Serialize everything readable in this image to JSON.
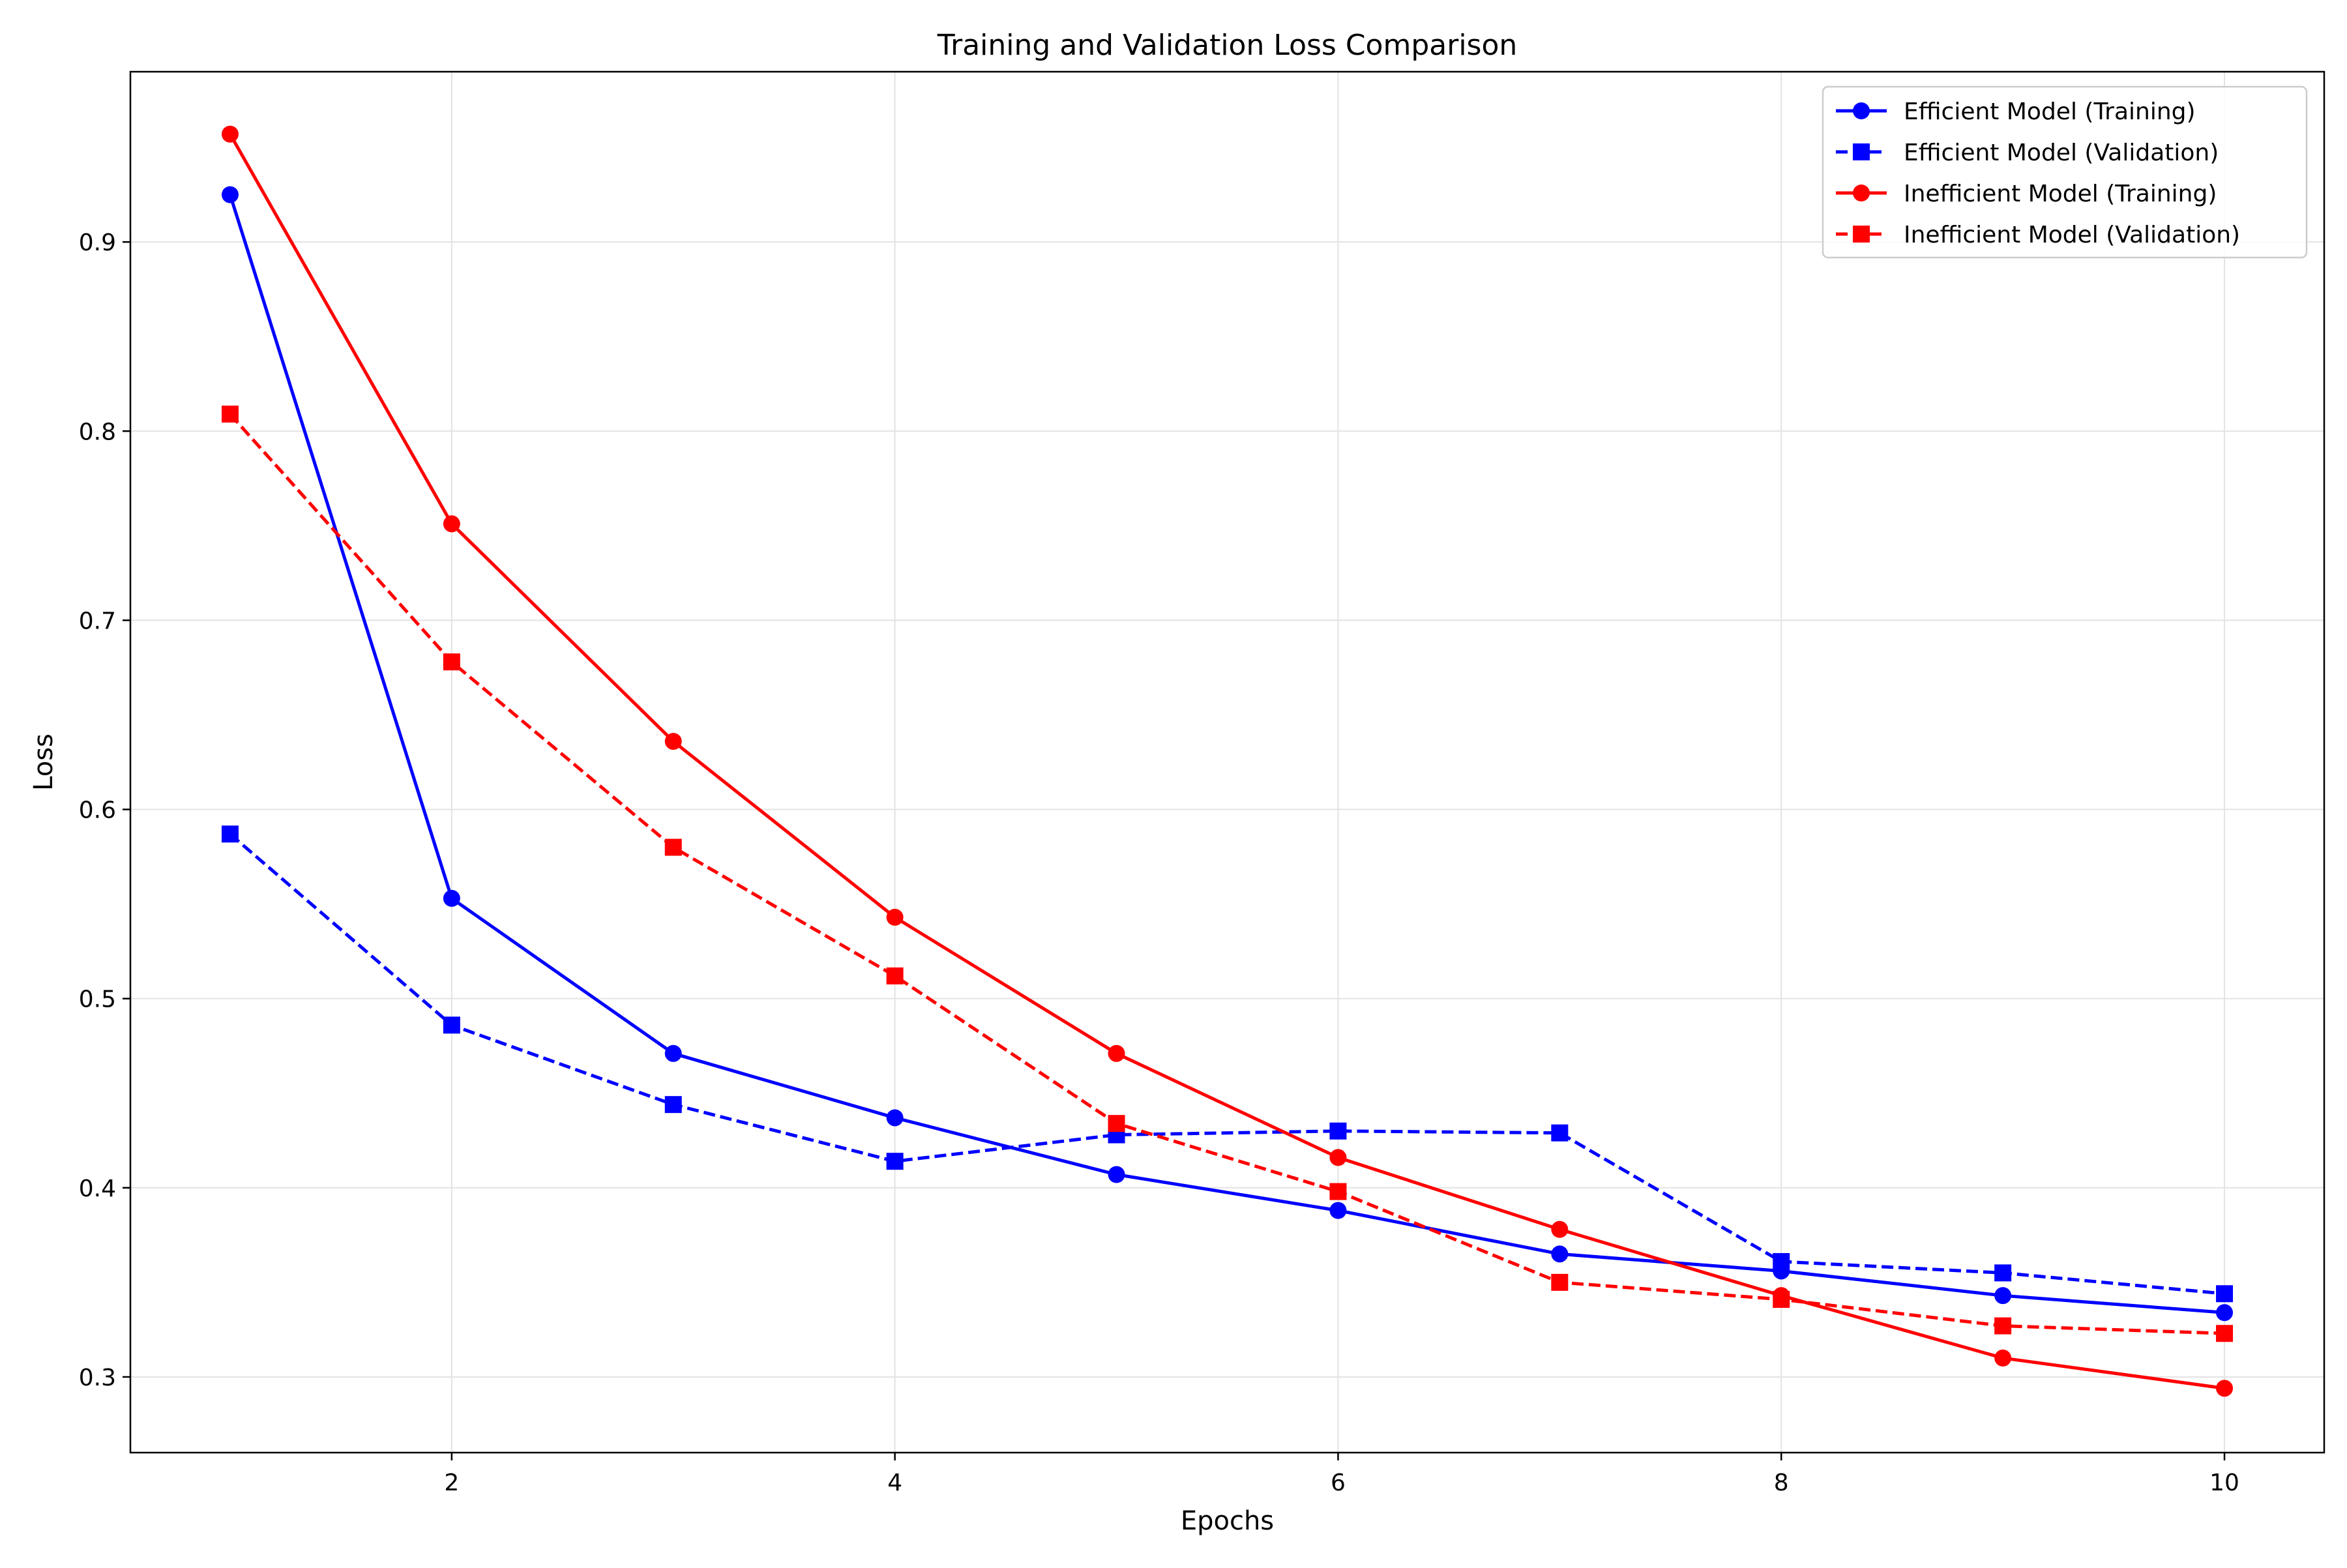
{
  "chart_data": {
    "type": "line",
    "title": "Training and Validation Loss Comparison",
    "xlabel": "Epochs",
    "ylabel": "Loss",
    "xlim": [
      0.55,
      10.45
    ],
    "ylim": [
      0.26,
      0.99
    ],
    "xticks": [
      2,
      4,
      6,
      8,
      10
    ],
    "yticks": [
      0.3,
      0.4,
      0.5,
      0.6,
      0.7,
      0.8,
      0.9
    ],
    "xtick_labels": [
      "2",
      "4",
      "6",
      "8",
      "10"
    ],
    "ytick_labels": [
      "0.3",
      "0.4",
      "0.5",
      "0.6",
      "0.7",
      "0.8",
      "0.9"
    ],
    "grid": true,
    "legend_position": "top-right",
    "x": [
      1,
      2,
      3,
      4,
      5,
      6,
      7,
      8,
      9,
      10
    ],
    "series": [
      {
        "name": "Efficient Model (Training)",
        "color": "#0000ff",
        "line_style": "solid",
        "marker": "circle",
        "values": [
          0.925,
          0.553,
          0.471,
          0.437,
          0.407,
          0.388,
          0.365,
          0.356,
          0.343,
          0.334
        ]
      },
      {
        "name": "Efficient Model (Validation)",
        "color": "#0000ff",
        "line_style": "dashed",
        "marker": "square",
        "values": [
          0.587,
          0.486,
          0.444,
          0.414,
          0.428,
          0.43,
          0.429,
          0.361,
          0.355,
          0.344
        ]
      },
      {
        "name": "Inefficient Model (Training)",
        "color": "#ff0000",
        "line_style": "solid",
        "marker": "circle",
        "values": [
          0.957,
          0.751,
          0.636,
          0.543,
          0.471,
          0.416,
          0.378,
          0.343,
          0.31,
          0.294
        ]
      },
      {
        "name": "Inefficient Model (Validation)",
        "color": "#ff0000",
        "line_style": "dashed",
        "marker": "square",
        "values": [
          0.809,
          0.678,
          0.58,
          0.512,
          0.434,
          0.398,
          0.35,
          0.341,
          0.327,
          0.323
        ]
      }
    ]
  }
}
